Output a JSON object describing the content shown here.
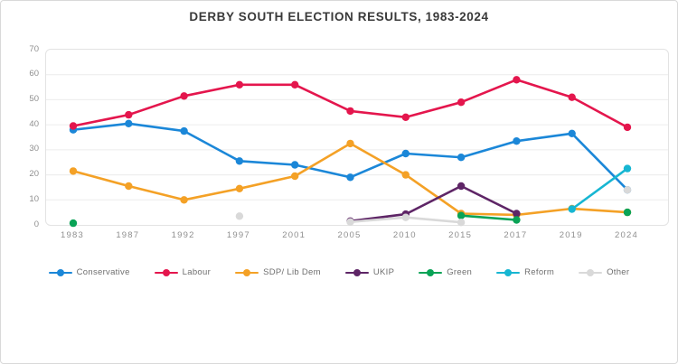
{
  "chart_data": {
    "type": "line",
    "title": "DERBY SOUTH ELECTION RESULTS, 1983-2024",
    "xlabel": "",
    "ylabel": "",
    "categories": [
      "1983",
      "1987",
      "1992",
      "1997",
      "2001",
      "2005",
      "2010",
      "2015",
      "2017",
      "2019",
      "2024"
    ],
    "ylim": [
      0,
      70
    ],
    "yticks": [
      0,
      10,
      20,
      30,
      40,
      50,
      60,
      70
    ],
    "grid": true,
    "legend_position": "bottom",
    "series": [
      {
        "name": "Conservative",
        "color": "#1b87d8",
        "values": [
          38,
          40.5,
          37.5,
          25.5,
          24,
          19,
          28.5,
          27,
          33.5,
          36.5,
          14
        ]
      },
      {
        "name": "Labour",
        "color": "#e4164d",
        "values": [
          39.5,
          44,
          51.5,
          56,
          56,
          45.5,
          43,
          49,
          58,
          51,
          39
        ]
      },
      {
        "name": "SDP/ Lib Dem",
        "color": "#f4a126",
        "values": [
          21.5,
          15.5,
          10,
          14.5,
          19.5,
          32.5,
          20,
          4.5,
          4,
          6.5,
          5
        ]
      },
      {
        "name": "UKIP",
        "color": "#5e2566",
        "values": [
          null,
          null,
          null,
          null,
          null,
          1.5,
          4.3,
          15.5,
          4.5,
          null,
          null
        ]
      },
      {
        "name": "Green",
        "color": "#09a356",
        "values": [
          0.7,
          null,
          null,
          null,
          null,
          null,
          null,
          3.7,
          2,
          null,
          5
        ]
      },
      {
        "name": "Reform",
        "color": "#17b6d2",
        "values": [
          null,
          null,
          null,
          null,
          null,
          null,
          null,
          null,
          null,
          6.3,
          22.5
        ]
      },
      {
        "name": "Other",
        "color": "#d9d9d9",
        "values": [
          null,
          null,
          null,
          3.5,
          null,
          1.2,
          3,
          1,
          null,
          null,
          14
        ]
      }
    ],
    "colors": {
      "title_text": "#3a3a3a",
      "axis_text": "#8f8f8f",
      "legend_text": "#6f6f6f",
      "gridline": "#ececec",
      "plot_border": "#e3e3e3",
      "background": "#ffffff"
    }
  }
}
